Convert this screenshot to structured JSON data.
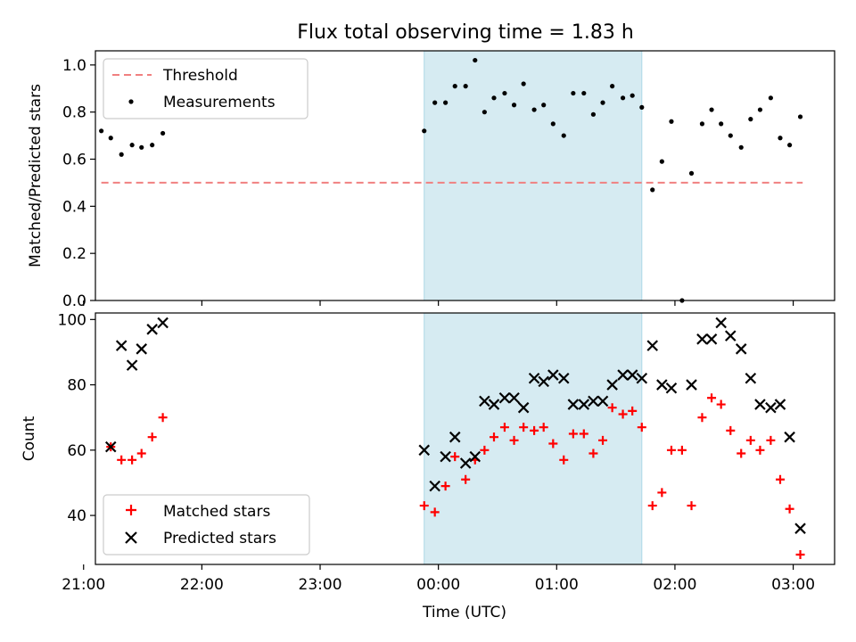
{
  "title": "Flux total observing time = 1.83 h",
  "colors": {
    "threshold": "#f08080",
    "measurements": "#000000",
    "matched": "#ff0000",
    "predicted": "#000000",
    "shade": "#add8e6"
  },
  "chart_data": [
    {
      "type": "scatter",
      "panel": "top",
      "ylabel": "Matched/Predicted stars",
      "ylim": [
        0,
        1.06
      ],
      "yticks": [
        "0.0",
        "0.2",
        "0.4",
        "0.6",
        "0.8",
        "1.0"
      ],
      "xlim": [
        -2.9,
        3.35
      ],
      "shaded_interval": [
        -0.12,
        1.72
      ],
      "legend": {
        "placement": "upper-left",
        "entries": [
          "Threshold",
          "Measurements"
        ]
      },
      "threshold": {
        "name": "Threshold",
        "y": 0.5,
        "x_range": [
          -2.85,
          3.08
        ]
      },
      "measurements": {
        "name": "Measurements",
        "x": [
          -2.85,
          -2.77,
          -2.68,
          -2.59,
          -2.51,
          -2.42,
          -2.33,
          -0.12,
          -0.03,
          0.06,
          0.14,
          0.23,
          0.31,
          0.39,
          0.47,
          0.56,
          0.64,
          0.72,
          0.81,
          0.89,
          0.97,
          1.06,
          1.14,
          1.23,
          1.31,
          1.39,
          1.47,
          1.56,
          1.64,
          1.72,
          1.81,
          1.89,
          1.97,
          2.06,
          2.14,
          2.23,
          2.31,
          2.39,
          2.47,
          2.56,
          2.64,
          2.72,
          2.81,
          2.89,
          2.97,
          3.06
        ],
        "y": [
          0.72,
          0.69,
          0.62,
          0.66,
          0.65,
          0.66,
          0.71,
          0.72,
          0.84,
          0.84,
          0.91,
          0.91,
          1.02,
          0.8,
          0.86,
          0.88,
          0.83,
          0.92,
          0.81,
          0.83,
          0.75,
          0.7,
          0.88,
          0.88,
          0.79,
          0.84,
          0.91,
          0.86,
          0.87,
          0.82,
          0.47,
          0.59,
          0.76,
          0.0,
          0.54,
          0.75,
          0.81,
          0.75,
          0.7,
          0.65,
          0.77,
          0.81,
          0.86,
          0.69,
          0.66,
          0.78
        ]
      }
    },
    {
      "type": "scatter",
      "panel": "bottom",
      "xlabel": "Time (UTC)",
      "ylabel": "Count",
      "ylim": [
        25,
        102
      ],
      "yticks": [
        "40",
        "60",
        "80",
        "100"
      ],
      "xlim": [
        -2.9,
        3.35
      ],
      "xticks": [
        "21:00",
        "22:00",
        "23:00",
        "00:00",
        "01:00",
        "02:00",
        "03:00"
      ],
      "shaded_interval": [
        -0.12,
        1.72
      ],
      "legend": {
        "placement": "lower-left",
        "entries": [
          "Matched stars",
          "Predicted stars"
        ]
      },
      "series": [
        {
          "name": "Matched stars",
          "marker": "+",
          "x": [
            -2.77,
            -2.68,
            -2.59,
            -2.51,
            -2.42,
            -2.33,
            -0.12,
            -0.03,
            0.06,
            0.14,
            0.23,
            0.31,
            0.39,
            0.47,
            0.56,
            0.64,
            0.72,
            0.81,
            0.89,
            0.97,
            1.06,
            1.14,
            1.23,
            1.31,
            1.39,
            1.47,
            1.56,
            1.64,
            1.72,
            1.81,
            1.89,
            1.97,
            2.06,
            2.14,
            2.23,
            2.31,
            2.39,
            2.47,
            2.56,
            2.64,
            2.72,
            2.81,
            2.89,
            2.97,
            3.06
          ],
          "y": [
            61,
            57,
            57,
            59,
            64,
            70,
            43,
            41,
            49,
            58,
            51,
            57,
            60,
            64,
            67,
            63,
            67,
            66,
            67,
            62,
            57,
            65,
            65,
            59,
            63,
            73,
            71,
            72,
            67,
            43,
            47,
            60,
            60,
            43,
            70,
            76,
            74,
            66,
            59,
            63,
            60,
            63,
            51,
            42,
            28
          ]
        },
        {
          "name": "Predicted stars",
          "marker": "x",
          "x": [
            -2.77,
            -2.68,
            -2.59,
            -2.51,
            -2.42,
            -2.33,
            -0.12,
            -0.03,
            0.06,
            0.14,
            0.23,
            0.31,
            0.39,
            0.47,
            0.56,
            0.64,
            0.72,
            0.81,
            0.89,
            0.97,
            1.06,
            1.14,
            1.23,
            1.31,
            1.39,
            1.47,
            1.56,
            1.64,
            1.72,
            1.81,
            1.89,
            1.97,
            2.14,
            2.23,
            2.31,
            2.39,
            2.47,
            2.56,
            2.64,
            2.72,
            2.81,
            2.89,
            2.97,
            3.06
          ],
          "y": [
            61,
            92,
            86,
            91,
            97,
            99,
            60,
            49,
            58,
            64,
            56,
            58,
            75,
            74,
            76,
            76,
            73,
            82,
            81,
            83,
            82,
            74,
            74,
            75,
            75,
            80,
            83,
            83,
            82,
            92,
            80,
            79,
            80,
            94,
            94,
            99,
            95,
            91,
            82,
            74,
            73,
            74,
            64,
            36
          ]
        }
      ]
    }
  ]
}
